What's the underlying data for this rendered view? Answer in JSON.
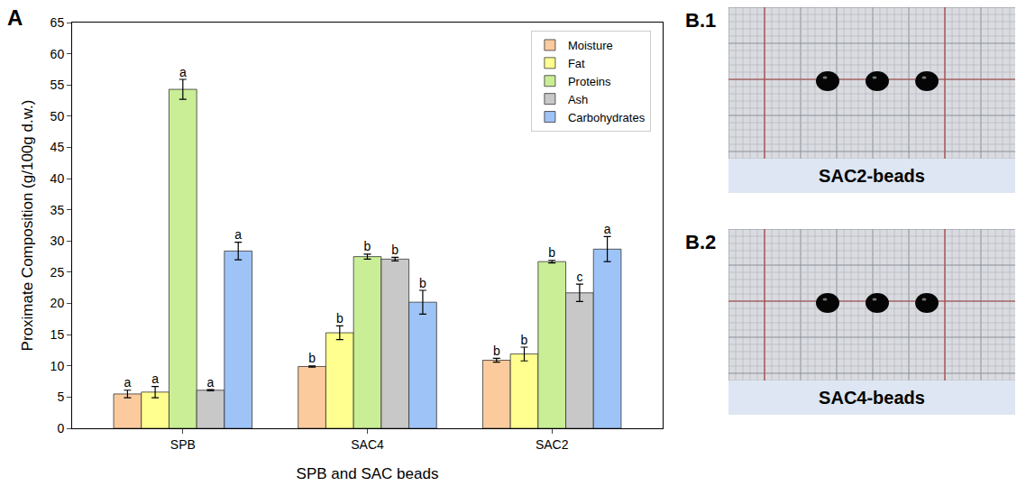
{
  "chart_data": {
    "type": "bar",
    "panel": "A",
    "x_label": "SPB and SAC beads",
    "y_label": "Proximate Composition (g/100g d.w.)",
    "categories": [
      "SPB",
      "SAC4",
      "SAC2"
    ],
    "series": [
      {
        "name": "Moisture",
        "color": "#FBCB9E",
        "values": [
          5.5,
          9.9,
          10.9
        ],
        "errors": [
          0.6,
          0.1,
          0.3
        ],
        "letters": [
          "a",
          "b",
          "b"
        ]
      },
      {
        "name": "Fat",
        "color": "#FFFF8F",
        "values": [
          5.8,
          15.3,
          11.9
        ],
        "errors": [
          0.9,
          1.1,
          1.1
        ],
        "letters": [
          "a",
          "b",
          "b"
        ]
      },
      {
        "name": "Proteins",
        "color": "#C9EE96",
        "values": [
          54.3,
          27.5,
          26.7
        ],
        "errors": [
          1.6,
          0.4,
          0.2
        ],
        "letters": [
          "a",
          "b",
          "b"
        ]
      },
      {
        "name": "Ash",
        "color": "#C8C8C8",
        "values": [
          6.1,
          27.1,
          21.7
        ],
        "errors": [
          0.1,
          0.3,
          1.4
        ],
        "letters": [
          "a",
          "b",
          "c"
        ]
      },
      {
        "name": "Carbohydrates",
        "color": "#9EC3F7",
        "values": [
          28.4,
          20.2,
          28.7
        ],
        "errors": [
          1.4,
          1.9,
          2.0
        ],
        "letters": [
          "a",
          "b",
          "a"
        ]
      }
    ],
    "ylim": [
      0,
      65
    ],
    "yticks": [
      0,
      5,
      10,
      15,
      20,
      25,
      30,
      35,
      40,
      45,
      50,
      55,
      60,
      65
    ],
    "grid": false,
    "legend": "top-right"
  },
  "images": [
    {
      "panel": "B.1",
      "caption": "SAC2-beads",
      "beads": 3
    },
    {
      "panel": "B.2",
      "caption": "SAC4-beads",
      "beads": 3
    }
  ]
}
